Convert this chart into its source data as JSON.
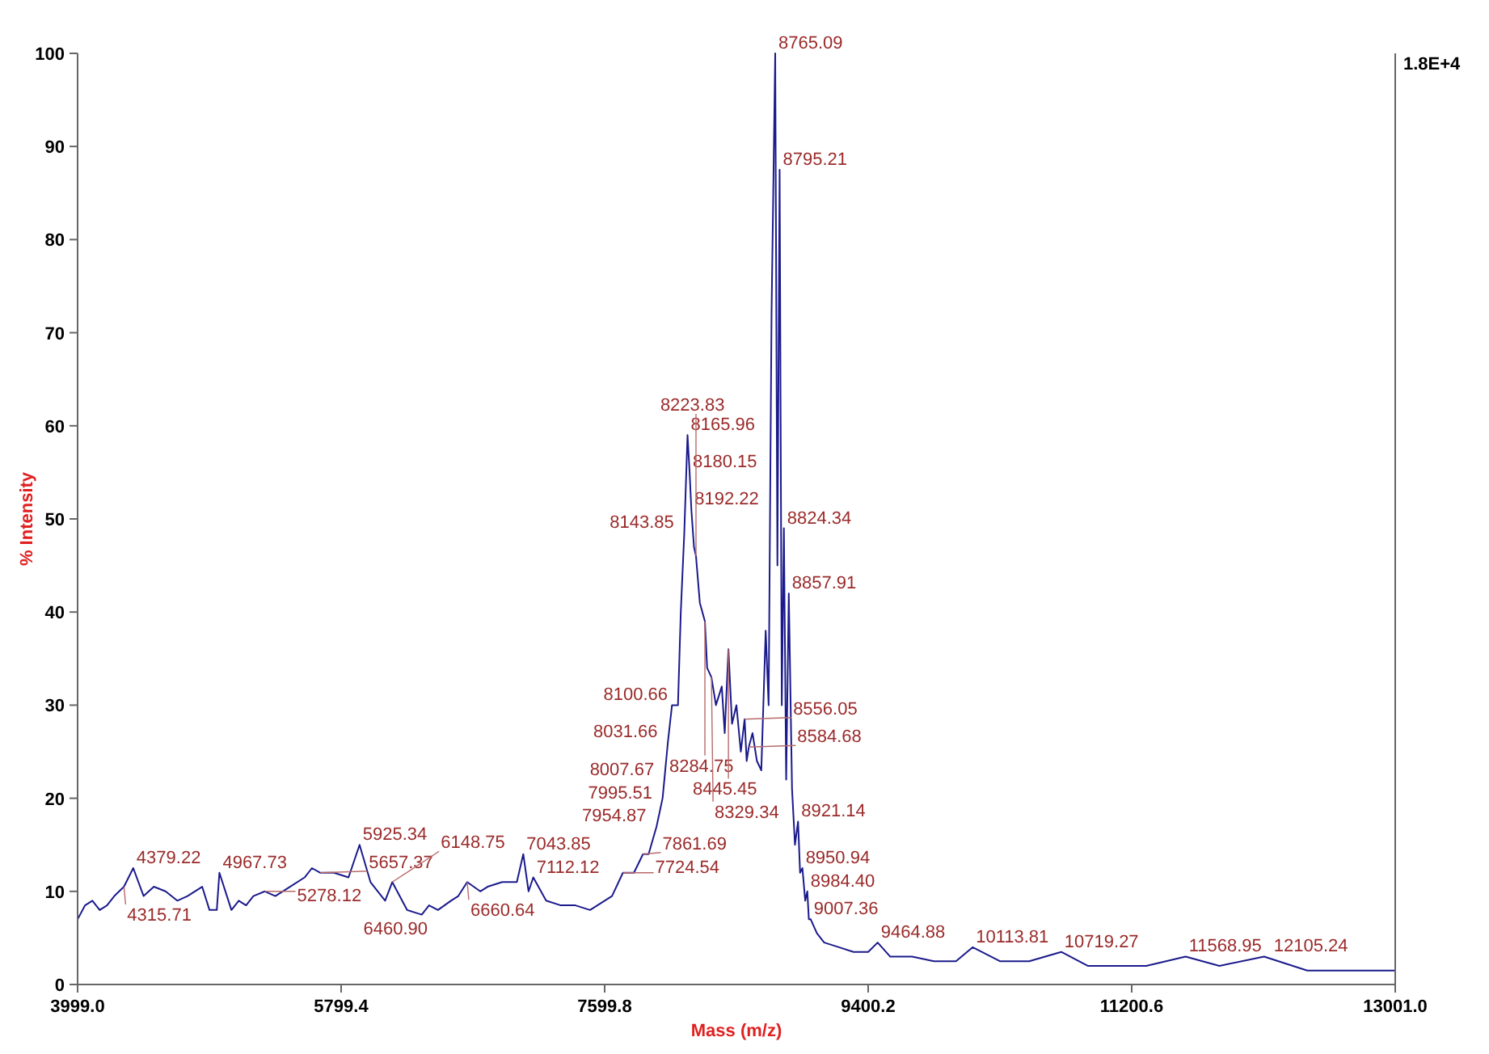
{
  "chart_data": {
    "type": "line",
    "xlabel": "Mass (m/z)",
    "ylabel": "% Intensity",
    "xlim": [
      3999,
      13001
    ],
    "ylim": [
      0,
      100
    ],
    "xticks": [
      {
        "value": 3999,
        "label": "3999.0"
      },
      {
        "value": 5799.4,
        "label": "5799.4"
      },
      {
        "value": 7599.8,
        "label": "7599.8"
      },
      {
        "value": 9400.2,
        "label": "9400.2"
      },
      {
        "value": 11200.6,
        "label": "11200.6"
      },
      {
        "value": 13001,
        "label": "13001.0"
      }
    ],
    "yticks": [
      0,
      10,
      20,
      30,
      40,
      50,
      60,
      70,
      80,
      90,
      100
    ],
    "grid": false,
    "marker": "none",
    "line_style": "solid",
    "series": [
      {
        "color": "#1a1a8c",
        "x": [
          3999,
          4050,
          4100,
          4150,
          4200,
          4250,
          4315.71,
          4379.22,
          4450,
          4520,
          4600,
          4680,
          4750,
          4850,
          4900,
          4950,
          4967.73,
          5050,
          5100,
          5150,
          5200,
          5278.12,
          5350,
          5450,
          5550,
          5600,
          5657.37,
          5750,
          5850,
          5925.34,
          6000,
          6100,
          6148.75,
          6250,
          6350,
          6400,
          6460.9,
          6550,
          6600,
          6660.64,
          6750,
          6800,
          6900,
          7000,
          7043.85,
          7080,
          7112.12,
          7200,
          7300,
          7400,
          7500,
          7600,
          7650,
          7724.54,
          7800,
          7861.69,
          7900,
          7954.87,
          7995.51,
          8007.67,
          8031.66,
          8060,
          8100.66,
          8120,
          8143.85,
          8165.96,
          8180.15,
          8192.22,
          8210,
          8223.83,
          8250,
          8284.75,
          8300,
          8329.34,
          8360,
          8400,
          8420,
          8445.45,
          8470,
          8500,
          8530,
          8556.05,
          8570,
          8584.68,
          8610,
          8640,
          8670,
          8700,
          8720,
          8740,
          8765.09,
          8780,
          8795.21,
          8810,
          8824.34,
          8840,
          8857.91,
          8880,
          8900,
          8921.14,
          8935,
          8950.94,
          8970,
          8984.4,
          8995,
          9007.36,
          9050,
          9100,
          9200,
          9300,
          9400,
          9464.88,
          9550,
          9700,
          9850,
          10000,
          10113.81,
          10300,
          10500,
          10719.27,
          10900,
          11100,
          11300,
          11568.95,
          11800,
          12105.24,
          12400,
          12700,
          13001
        ],
        "values": [
          7,
          8.5,
          9,
          8,
          8.5,
          9.5,
          10.5,
          12.5,
          9.5,
          10.5,
          10,
          9,
          9.5,
          10.5,
          8,
          8,
          12,
          8,
          9,
          8.5,
          9.5,
          10,
          9.5,
          10.5,
          11.5,
          12.5,
          12,
          12,
          11.5,
          15,
          11,
          9,
          11,
          8,
          7.5,
          8.5,
          8,
          9,
          9.5,
          11,
          10,
          10.5,
          11,
          11,
          14,
          10,
          11.5,
          9,
          8.5,
          8.5,
          8,
          9,
          9.5,
          12,
          12,
          14,
          14,
          17,
          20,
          22,
          26,
          30,
          30,
          40,
          48.5,
          59,
          55,
          51,
          47,
          46,
          41,
          39,
          34,
          33,
          30,
          32,
          27,
          36,
          28,
          30,
          25,
          28.5,
          24,
          25.5,
          27,
          24,
          23,
          38,
          30,
          72,
          100,
          45,
          87.5,
          30,
          49,
          22,
          42,
          21,
          15,
          17.5,
          12,
          12.5,
          9,
          10,
          7,
          7,
          5.5,
          4.5,
          4,
          3.5,
          3.5,
          4.5,
          3,
          3,
          2.5,
          2.5,
          4,
          2.5,
          2.5,
          3.5,
          2,
          2,
          2,
          3,
          2,
          3,
          1.5,
          1.5,
          1.5
        ]
      }
    ],
    "annotations": [
      "1.8E+4",
      {
        "text": "4315.71",
        "x": 4315.71,
        "y": 10.5
      },
      {
        "text": "4379.22",
        "x": 4379.22,
        "y": 12.5
      },
      {
        "text": "4967.73",
        "x": 4967.73,
        "y": 12
      },
      {
        "text": "5278.12",
        "x": 5278.12,
        "y": 10
      },
      {
        "text": "5657.37",
        "x": 5657.37,
        "y": 12
      },
      {
        "text": "5925.34",
        "x": 5925.34,
        "y": 15
      },
      {
        "text": "6148.75",
        "x": 6148.75,
        "y": 11
      },
      {
        "text": "6460.90",
        "x": 6460.9,
        "y": 8
      },
      {
        "text": "6660.64",
        "x": 6660.64,
        "y": 11
      },
      {
        "text": "7043.85",
        "x": 7043.85,
        "y": 14
      },
      {
        "text": "7112.12",
        "x": 7112.12,
        "y": 11.5
      },
      {
        "text": "7724.54",
        "x": 7724.54,
        "y": 12
      },
      {
        "text": "7861.69",
        "x": 7861.69,
        "y": 14
      },
      {
        "text": "7954.87",
        "x": 7954.87,
        "y": 17
      },
      {
        "text": "7995.51",
        "x": 7995.51,
        "y": 20
      },
      {
        "text": "8007.67",
        "x": 8007.67,
        "y": 22
      },
      {
        "text": "8031.66",
        "x": 8031.66,
        "y": 26
      },
      {
        "text": "8100.66",
        "x": 8100.66,
        "y": 30
      },
      {
        "text": "8143.85",
        "x": 8143.85,
        "y": 48.5
      },
      {
        "text": "8165.96",
        "x": 8165.96,
        "y": 59
      },
      {
        "text": "8180.15",
        "x": 8180.15,
        "y": 55
      },
      {
        "text": "8192.22",
        "x": 8192.22,
        "y": 51
      },
      {
        "text": "8223.83",
        "x": 8223.83,
        "y": 46
      },
      {
        "text": "8284.75",
        "x": 8284.75,
        "y": 39
      },
      {
        "text": "8329.34",
        "x": 8329.34,
        "y": 33
      },
      {
        "text": "8445.45",
        "x": 8445.45,
        "y": 36
      },
      {
        "text": "8556.05",
        "x": 8556.05,
        "y": 28.5
      },
      {
        "text": "8584.68",
        "x": 8584.68,
        "y": 25.5
      },
      {
        "text": "8765.09",
        "x": 8765.09,
        "y": 100
      },
      {
        "text": "8795.21",
        "x": 8795.21,
        "y": 87.5
      },
      {
        "text": "8824.34",
        "x": 8824.34,
        "y": 49
      },
      {
        "text": "8857.91",
        "x": 8857.91,
        "y": 42
      },
      {
        "text": "8921.14",
        "x": 8921.14,
        "y": 17.5
      },
      {
        "text": "8950.94",
        "x": 8950.94,
        "y": 12.5
      },
      {
        "text": "8984.40",
        "x": 8984.4,
        "y": 10
      },
      {
        "text": "9007.36",
        "x": 9007.36,
        "y": 7
      },
      {
        "text": "9464.88",
        "x": 9464.88,
        "y": 4.5
      },
      {
        "text": "10113.81",
        "x": 10113.81,
        "y": 4
      },
      {
        "text": "10719.27",
        "x": 10719.27,
        "y": 3.5
      },
      {
        "text": "11568.95",
        "x": 11568.95,
        "y": 3
      },
      {
        "text": "12105.24",
        "x": 12105.24,
        "y": 3
      }
    ]
  }
}
